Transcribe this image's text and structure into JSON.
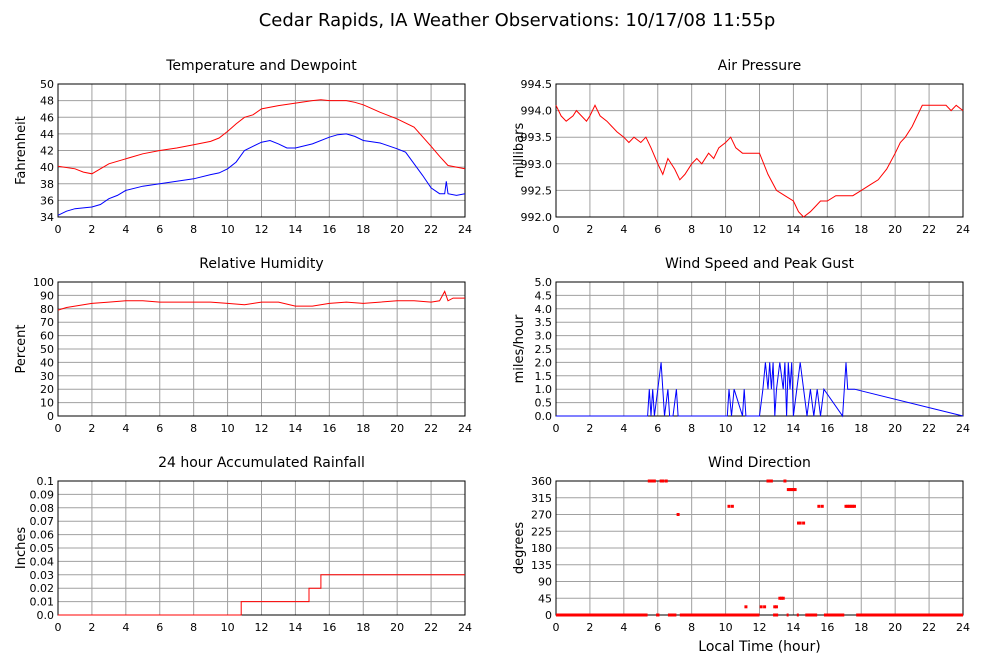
{
  "page_title": "Cedar Rapids, IA Weather Observations: 10/17/08 11:55p",
  "colors": {
    "red": "#ff0000",
    "blue": "#0000ff",
    "grid": "#a0a0a0",
    "axis": "#000000"
  },
  "chart_data": [
    {
      "id": "temp",
      "type": "line",
      "title": "Temperature and Dewpoint",
      "ylabel": "Fahrenheit",
      "xlabel": "",
      "xlim": [
        0,
        24
      ],
      "ylim": [
        34,
        50
      ],
      "xticks": [
        0,
        2,
        4,
        6,
        8,
        10,
        12,
        14,
        16,
        18,
        20,
        22,
        24
      ],
      "yticks": [
        34,
        36,
        38,
        40,
        42,
        44,
        46,
        48,
        50
      ],
      "ytick_labels": [
        "34",
        "36",
        "38",
        "40",
        "42",
        "44",
        "46",
        "48",
        "50"
      ],
      "grid": true,
      "series": [
        {
          "key": "temperature",
          "color": "#ff0000",
          "x": [
            0,
            1,
            1.5,
            2,
            2.5,
            3,
            4,
            5,
            6,
            7,
            8,
            9,
            9.5,
            10,
            10.5,
            11,
            11.5,
            12,
            13,
            14,
            15,
            15.5,
            16,
            17,
            17.5,
            18,
            19,
            20,
            21,
            22,
            22.5,
            23,
            24
          ],
          "y": [
            40.1,
            39.8,
            39.4,
            39.2,
            39.8,
            40.4,
            41,
            41.6,
            42,
            42.3,
            42.7,
            43.1,
            43.5,
            44.3,
            45.2,
            46,
            46.3,
            47,
            47.4,
            47.7,
            48,
            48.1,
            48,
            48,
            47.8,
            47.5,
            46.6,
            45.8,
            44.8,
            42.5,
            41.3,
            40.2,
            39.8
          ]
        },
        {
          "key": "dewpoint",
          "color": "#0000ff",
          "x": [
            0,
            0.5,
            1,
            1.5,
            2,
            2.5,
            3,
            3.5,
            4,
            5,
            6,
            7,
            8,
            9,
            9.5,
            10,
            10.5,
            11,
            11.5,
            12,
            12.5,
            13,
            13.5,
            14,
            15,
            16,
            16.5,
            17,
            17.5,
            18,
            19,
            20,
            20.5,
            21,
            21.5,
            22,
            22.5,
            22.8,
            22.9,
            23,
            23.5,
            24
          ],
          "y": [
            34.2,
            34.7,
            35,
            35.1,
            35.2,
            35.5,
            36.2,
            36.6,
            37.2,
            37.7,
            38,
            38.3,
            38.6,
            39.1,
            39.3,
            39.8,
            40.6,
            42,
            42.5,
            43,
            43.2,
            42.8,
            42.3,
            42.3,
            42.8,
            43.6,
            43.9,
            44,
            43.7,
            43.2,
            42.9,
            42.2,
            41.8,
            40.4,
            39,
            37.5,
            36.8,
            36.8,
            38.3,
            36.8,
            36.6,
            36.8
          ]
        }
      ]
    },
    {
      "id": "pressure",
      "type": "line",
      "title": "Air Pressure",
      "ylabel": "millibars",
      "xlabel": "",
      "xlim": [
        0,
        24
      ],
      "ylim": [
        992.0,
        994.5
      ],
      "xticks": [
        0,
        2,
        4,
        6,
        8,
        10,
        12,
        14,
        16,
        18,
        20,
        22,
        24
      ],
      "yticks": [
        992.0,
        992.5,
        993.0,
        993.5,
        994.0,
        994.5
      ],
      "ytick_labels": [
        "992.0",
        "992.5",
        "993.0",
        "993.5",
        "994.0",
        "994.5"
      ],
      "grid": true,
      "series": [
        {
          "key": "pressure",
          "color": "#ff0000",
          "x": [
            0,
            0.3,
            0.6,
            1,
            1.2,
            1.5,
            1.8,
            2,
            2.3,
            2.6,
            3,
            3.3,
            3.6,
            4,
            4.3,
            4.6,
            5,
            5.3,
            5.6,
            6,
            6.3,
            6.6,
            7,
            7.3,
            7.6,
            8,
            8.3,
            8.6,
            9,
            9.3,
            9.6,
            10,
            10.3,
            10.6,
            11,
            11.5,
            12,
            12.5,
            13,
            13.5,
            14,
            14.3,
            14.6,
            15,
            15.3,
            15.6,
            16,
            16.5,
            17,
            17.5,
            18,
            18.5,
            19,
            19.5,
            20,
            20.3,
            20.6,
            21,
            21.3,
            21.6,
            22,
            22.5,
            23,
            23.3,
            23.6,
            24
          ],
          "y": [
            994.1,
            993.9,
            993.8,
            993.9,
            994.0,
            993.9,
            993.8,
            993.9,
            994.1,
            993.9,
            993.8,
            993.7,
            993.6,
            993.5,
            993.4,
            993.5,
            993.4,
            993.5,
            993.3,
            993.0,
            992.8,
            993.1,
            992.9,
            992.7,
            992.8,
            993.0,
            993.1,
            993.0,
            993.2,
            993.1,
            993.3,
            993.4,
            993.5,
            993.3,
            993.2,
            993.2,
            993.2,
            992.8,
            992.5,
            992.4,
            992.3,
            992.1,
            992.0,
            992.1,
            992.2,
            992.3,
            992.3,
            992.4,
            992.4,
            992.4,
            992.5,
            992.6,
            992.7,
            992.9,
            993.2,
            993.4,
            993.5,
            993.7,
            993.9,
            994.1,
            994.1,
            994.1,
            994.1,
            994.0,
            994.1,
            994.0
          ]
        }
      ]
    },
    {
      "id": "humidity",
      "type": "line",
      "title": "Relative Humidity",
      "ylabel": "Percent",
      "xlabel": "",
      "xlim": [
        0,
        24
      ],
      "ylim": [
        0,
        100
      ],
      "xticks": [
        0,
        2,
        4,
        6,
        8,
        10,
        12,
        14,
        16,
        18,
        20,
        22,
        24
      ],
      "yticks": [
        0,
        10,
        20,
        30,
        40,
        50,
        60,
        70,
        80,
        90,
        100
      ],
      "ytick_labels": [
        "0",
        "10",
        "20",
        "30",
        "40",
        "50",
        "60",
        "70",
        "80",
        "90",
        "100"
      ],
      "grid": true,
      "series": [
        {
          "key": "rh",
          "color": "#ff0000",
          "x": [
            0,
            0.5,
            1,
            1.5,
            2,
            3,
            4,
            5,
            6,
            7,
            8,
            9,
            10,
            11,
            12,
            13,
            14,
            15,
            16,
            17,
            18,
            19,
            20,
            21,
            22,
            22.5,
            22.8,
            23,
            23.3,
            24
          ],
          "y": [
            79,
            81,
            82,
            83,
            84,
            85,
            86,
            86,
            85,
            85,
            85,
            85,
            84,
            83,
            85,
            85,
            82,
            82,
            84,
            85,
            84,
            85,
            86,
            86,
            85,
            86,
            93,
            86,
            88,
            88
          ]
        }
      ]
    },
    {
      "id": "wind_speed",
      "type": "line",
      "title": "Wind Speed and Peak Gust",
      "ylabel": "miles/hour",
      "xlabel": "",
      "xlim": [
        0,
        24
      ],
      "ylim": [
        0,
        5.0
      ],
      "xticks": [
        0,
        2,
        4,
        6,
        8,
        10,
        12,
        14,
        16,
        18,
        20,
        22,
        24
      ],
      "yticks": [
        0,
        0.5,
        1.0,
        1.5,
        2.0,
        2.5,
        3.0,
        3.5,
        4.0,
        4.5,
        5.0
      ],
      "ytick_labels": [
        "0.0",
        "0.5",
        "1.0",
        "1.5",
        "2.0",
        "2.5",
        "3.0",
        "3.5",
        "4.0",
        "4.5",
        "5.0"
      ],
      "grid": true,
      "series": [
        {
          "key": "speed",
          "color": "#0000ff",
          "x": [
            0,
            5.4,
            5.5,
            5.6,
            5.7,
            5.8,
            6.0,
            6.2,
            6.4,
            6.6,
            6.7,
            6.9,
            7.1,
            7.2,
            7.3,
            10.1,
            10.2,
            10.35,
            10.5,
            11.0,
            11.1,
            11.2,
            12.0,
            12.2,
            12.35,
            12.5,
            12.6,
            12.7,
            12.8,
            12.9,
            13.0,
            13.2,
            13.4,
            13.5,
            13.6,
            13.7,
            13.8,
            13.9,
            14.0,
            14.2,
            14.4,
            14.6,
            14.8,
            15.0,
            15.2,
            15.4,
            15.6,
            15.8,
            16.9,
            17.1,
            17.2,
            17.6,
            24
          ],
          "y": [
            0,
            0,
            1,
            0,
            1,
            0,
            1,
            2,
            0,
            1,
            0,
            0,
            1,
            0,
            0,
            0,
            1,
            0,
            1,
            0,
            1,
            0,
            0,
            1,
            2,
            1,
            2,
            1,
            2,
            0,
            1,
            2,
            1,
            2,
            0,
            2,
            1,
            2,
            0,
            1,
            2,
            1,
            0,
            1,
            0,
            1,
            0,
            1,
            0,
            2,
            1,
            1,
            0
          ]
        }
      ]
    },
    {
      "id": "rain",
      "type": "line",
      "title": "24 hour Accumulated Rainfall",
      "ylabel": "Inches",
      "xlabel": "",
      "xlim": [
        0,
        24
      ],
      "ylim": [
        0,
        0.1
      ],
      "xticks": [
        0,
        2,
        4,
        6,
        8,
        10,
        12,
        14,
        16,
        18,
        20,
        22,
        24
      ],
      "yticks": [
        0,
        0.01,
        0.02,
        0.03,
        0.04,
        0.05,
        0.06,
        0.07,
        0.08,
        0.09,
        0.1
      ],
      "ytick_labels": [
        "0.0",
        "0.01",
        "0.02",
        "0.03",
        "0.04",
        "0.05",
        "0.06",
        "0.07",
        "0.08",
        "0.09",
        "0.1"
      ],
      "grid": true,
      "series": [
        {
          "key": "rain",
          "color": "#ff0000",
          "step": true,
          "x": [
            0,
            10.8,
            14.8,
            15.5,
            24
          ],
          "y": [
            0,
            0.01,
            0.02,
            0.03,
            0.03
          ]
        }
      ]
    },
    {
      "id": "wind_dir",
      "type": "scatter",
      "title": "Wind Direction",
      "ylabel": "degrees",
      "xlabel": "Local Time (hour)",
      "xlim": [
        0,
        24
      ],
      "ylim": [
        0,
        360
      ],
      "xticks": [
        0,
        2,
        4,
        6,
        8,
        10,
        12,
        14,
        16,
        18,
        20,
        22,
        24
      ],
      "yticks": [
        0,
        45,
        90,
        135,
        180,
        225,
        270,
        315,
        360
      ],
      "ytick_labels": [
        "0",
        "45",
        "90",
        "135",
        "180",
        "225",
        "270",
        "315",
        "360"
      ],
      "grid": true,
      "series": [
        {
          "key": "direction",
          "color": "#ff0000",
          "x": [
            5.5,
            5.6,
            5.7,
            5.8,
            6.2,
            6.3,
            6.5,
            7.2,
            10.2,
            10.4,
            11.2,
            12.1,
            12.3,
            12.5,
            12.6,
            12.7,
            12.9,
            13.0,
            13.2,
            13.3,
            13.4,
            13.5,
            13.7,
            13.8,
            13.9,
            14.0,
            14.1,
            14.3,
            14.4,
            14.6,
            15.5,
            15.7,
            17.1,
            17.2,
            17.3,
            17.4,
            17.5,
            17.6
          ],
          "y": [
            360,
            360,
            360,
            360,
            360,
            360,
            360,
            270,
            292,
            292,
            22,
            22,
            22,
            360,
            360,
            360,
            22,
            22,
            45,
            45,
            45,
            360,
            337,
            337,
            337,
            337,
            337,
            247,
            247,
            247,
            292,
            292,
            292,
            292,
            292,
            292,
            292,
            292
          ],
          "zeros_x": [
            [
              0,
              5.4
            ],
            [
              5.9,
              6.1
            ],
            [
              6.6,
              7.1
            ],
            [
              7.3,
              12.0
            ],
            [
              12.8,
              13.1
            ],
            [
              13.6,
              13.7
            ],
            [
              14.2,
              14.3
            ],
            [
              14.7,
              15.4
            ],
            [
              15.8,
              17.0
            ],
            [
              17.7,
              24
            ]
          ]
        }
      ]
    }
  ]
}
